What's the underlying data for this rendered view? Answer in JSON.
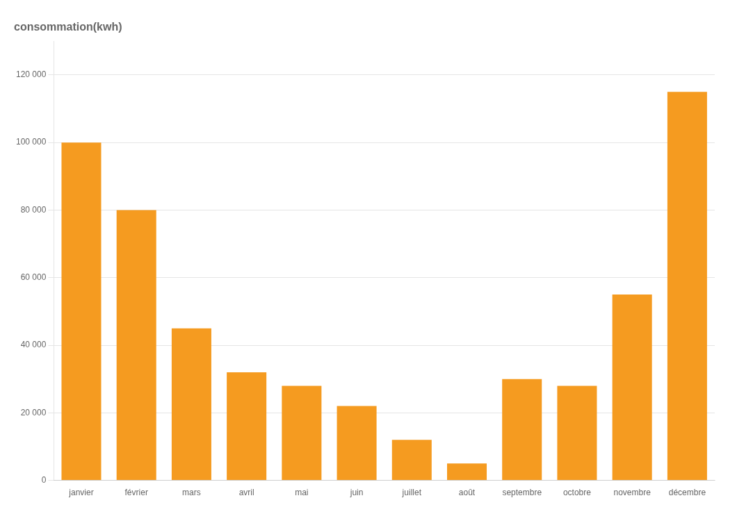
{
  "chart_data": {
    "type": "bar",
    "title": "consommation(kwh)",
    "categories": [
      "janvier",
      "février",
      "mars",
      "avril",
      "mai",
      "juin",
      "juillet",
      "août",
      "septembre",
      "octobre",
      "novembre",
      "décembre"
    ],
    "values": [
      100000,
      80000,
      45000,
      32000,
      28000,
      22000,
      12000,
      5000,
      30000,
      28000,
      55000,
      115000
    ],
    "color": "#F59B20",
    "ylim": [
      0,
      130000
    ],
    "yticks": [
      0,
      {
        "value": 20000,
        "label": "20 000"
      },
      {
        "value": 40000,
        "label": "40 000"
      },
      {
        "value": 60000,
        "label": "60 000"
      },
      {
        "value": 80000,
        "label": "80 000"
      },
      {
        "value": 100000,
        "label": "100 000"
      },
      {
        "value": 120000,
        "label": "120 000"
      }
    ],
    "grid": true
  }
}
